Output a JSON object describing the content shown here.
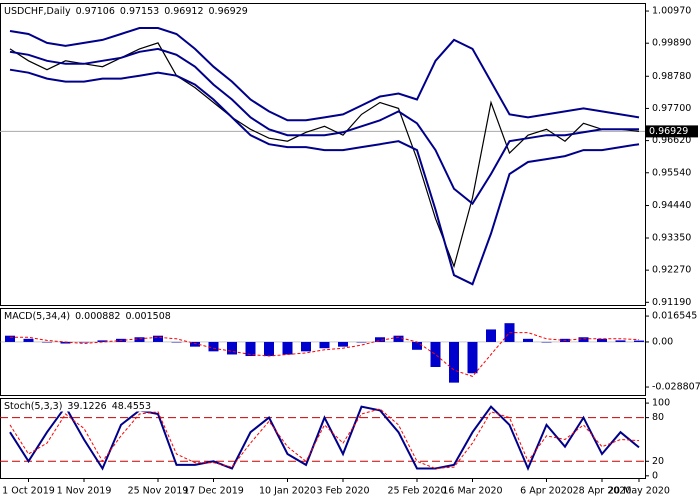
{
  "chart_data": [
    {
      "type": "line",
      "title": "USDCHF,Daily",
      "last_bar": {
        "open": 0.97106,
        "high": 0.97153,
        "low": 0.96912,
        "close": 0.96929
      },
      "categories": [
        null,
        "1 Oct 2019",
        null,
        null,
        "1 Nov 2019",
        null,
        null,
        null,
        "25 Nov 2019",
        null,
        null,
        "17 Dec 2019",
        null,
        null,
        null,
        "10 Jan 2020",
        null,
        null,
        "3 Feb 2020",
        null,
        null,
        null,
        "25 Feb 2020",
        null,
        null,
        "16 Mar 2020",
        null,
        null,
        null,
        "6 Apr 2020",
        null,
        null,
        "28 Apr 2020",
        null,
        "20 May 2020"
      ],
      "ylim": [
        0.911,
        1.0124
      ],
      "yticks": [
        {
          "value": 1.0097,
          "label": "1.00970"
        },
        {
          "value": 0.9989,
          "label": "0.99890"
        },
        {
          "value": 0.9878,
          "label": "0.98780"
        },
        {
          "value": 0.977,
          "label": "0.97700"
        },
        {
          "value": 0.9662,
          "label": "0.96620"
        },
        {
          "value": 0.9554,
          "label": "0.95540"
        },
        {
          "value": 0.9444,
          "label": "0.94440"
        },
        {
          "value": 0.9335,
          "label": "0.93350"
        },
        {
          "value": 0.9227,
          "label": "0.92270"
        },
        {
          "value": 0.9119,
          "label": "0.91190"
        }
      ],
      "series": [
        {
          "style": "line",
          "color": "#000000",
          "values": [
            0.997,
            0.993,
            0.99,
            0.993,
            0.992,
            0.991,
            0.994,
            0.997,
            0.999,
            0.988,
            0.984,
            0.979,
            0.974,
            0.97,
            0.967,
            0.966,
            0.969,
            0.971,
            0.968,
            0.975,
            0.979,
            0.977,
            0.96,
            0.94,
            0.924,
            0.947,
            0.979,
            0.962,
            0.968,
            0.97,
            0.966,
            0.972,
            0.97,
            0.97,
            0.96929
          ]
        },
        {
          "style": "line",
          "color": "#00008b",
          "values": [
            1.003,
            1.002,
            0.999,
            0.998,
            0.999,
            1.0,
            1.002,
            1.004,
            1.004,
            1.002,
            0.997,
            0.991,
            0.986,
            0.98,
            0.976,
            0.973,
            0.973,
            0.974,
            0.975,
            0.978,
            0.981,
            0.982,
            0.98,
            0.993,
            1.0,
            0.997,
            0.986,
            0.975,
            0.974,
            0.975,
            0.976,
            0.977,
            0.976,
            0.975,
            0.974
          ]
        },
        {
          "style": "line",
          "color": "#00008b",
          "values": [
            0.996,
            0.995,
            0.993,
            0.992,
            0.992,
            0.993,
            0.994,
            0.996,
            0.997,
            0.995,
            0.991,
            0.985,
            0.98,
            0.974,
            0.97,
            0.968,
            0.968,
            0.968,
            0.969,
            0.971,
            0.973,
            0.976,
            0.972,
            0.963,
            0.95,
            0.945,
            0.955,
            0.966,
            0.967,
            0.968,
            0.968,
            0.969,
            0.97,
            0.97,
            0.97
          ]
        },
        {
          "style": "line",
          "color": "#00008b",
          "values": [
            0.99,
            0.989,
            0.987,
            0.986,
            0.986,
            0.987,
            0.987,
            0.988,
            0.989,
            0.988,
            0.985,
            0.98,
            0.974,
            0.968,
            0.965,
            0.964,
            0.964,
            0.963,
            0.963,
            0.964,
            0.965,
            0.966,
            0.963,
            0.943,
            0.921,
            0.918,
            0.935,
            0.955,
            0.959,
            0.96,
            0.961,
            0.963,
            0.963,
            0.964,
            0.965
          ]
        }
      ]
    },
    {
      "type": "bar",
      "title": "MACD(5,34,4)",
      "readout": [
        0.000882,
        0.001508
      ],
      "ylim": [
        -0.0339,
        0.0217
      ],
      "yticks": [
        0.016545,
        {
          "value": 0,
          "label": "0.00"
        },
        -0.028807
      ],
      "series": [
        {
          "style": "bar",
          "color": "#0000cd",
          "values": [
            0.004,
            0.002,
            0.0,
            -0.001,
            0.0,
            0.001,
            0.002,
            0.003,
            0.004,
            0.0,
            -0.003,
            -0.006,
            -0.008,
            -0.009,
            -0.009,
            -0.008,
            -0.006,
            -0.004,
            -0.003,
            0.0,
            0.003,
            0.004,
            -0.005,
            -0.016,
            -0.026,
            -0.02,
            0.008,
            0.012,
            0.002,
            0.0,
            0.002,
            0.003,
            0.002,
            0.001,
            0.000882
          ]
        },
        {
          "style": "dashed",
          "color": "#ff0000",
          "values": [
            0.003,
            0.003,
            0.001,
            0.0,
            -0.001,
            0.0,
            0.001,
            0.002,
            0.003,
            0.002,
            -0.001,
            -0.004,
            -0.006,
            -0.008,
            -0.009,
            -0.008,
            -0.007,
            -0.005,
            -0.004,
            -0.002,
            0.001,
            0.003,
            0.0,
            -0.008,
            -0.018,
            -0.022,
            -0.008,
            0.006,
            0.006,
            0.002,
            0.001,
            0.002,
            0.002,
            0.002,
            0.001508
          ]
        }
      ]
    },
    {
      "type": "line",
      "title": "Stoch(5,3,3)",
      "readout": [
        39.1226,
        48.4553
      ],
      "ylim": [
        -3,
        107
      ],
      "yticks": [
        100,
        80,
        20,
        0
      ],
      "levels": [
        80,
        20
      ],
      "level_color": "#cc0000",
      "series": [
        {
          "style": "line",
          "color": "#00008b",
          "values": [
            60,
            20,
            60,
            95,
            50,
            10,
            70,
            90,
            85,
            15,
            15,
            20,
            10,
            60,
            80,
            30,
            15,
            80,
            30,
            95,
            90,
            60,
            10,
            10,
            15,
            60,
            95,
            70,
            10,
            70,
            40,
            80,
            30,
            60,
            39.1226
          ]
        },
        {
          "style": "dashed",
          "color": "#ff0000",
          "values": [
            70,
            30,
            45,
            85,
            65,
            20,
            55,
            85,
            88,
            30,
            18,
            18,
            12,
            45,
            75,
            40,
            20,
            70,
            45,
            85,
            92,
            70,
            20,
            10,
            12,
            45,
            88,
            80,
            20,
            55,
            50,
            70,
            40,
            50,
            48.4553
          ]
        }
      ]
    }
  ]
}
